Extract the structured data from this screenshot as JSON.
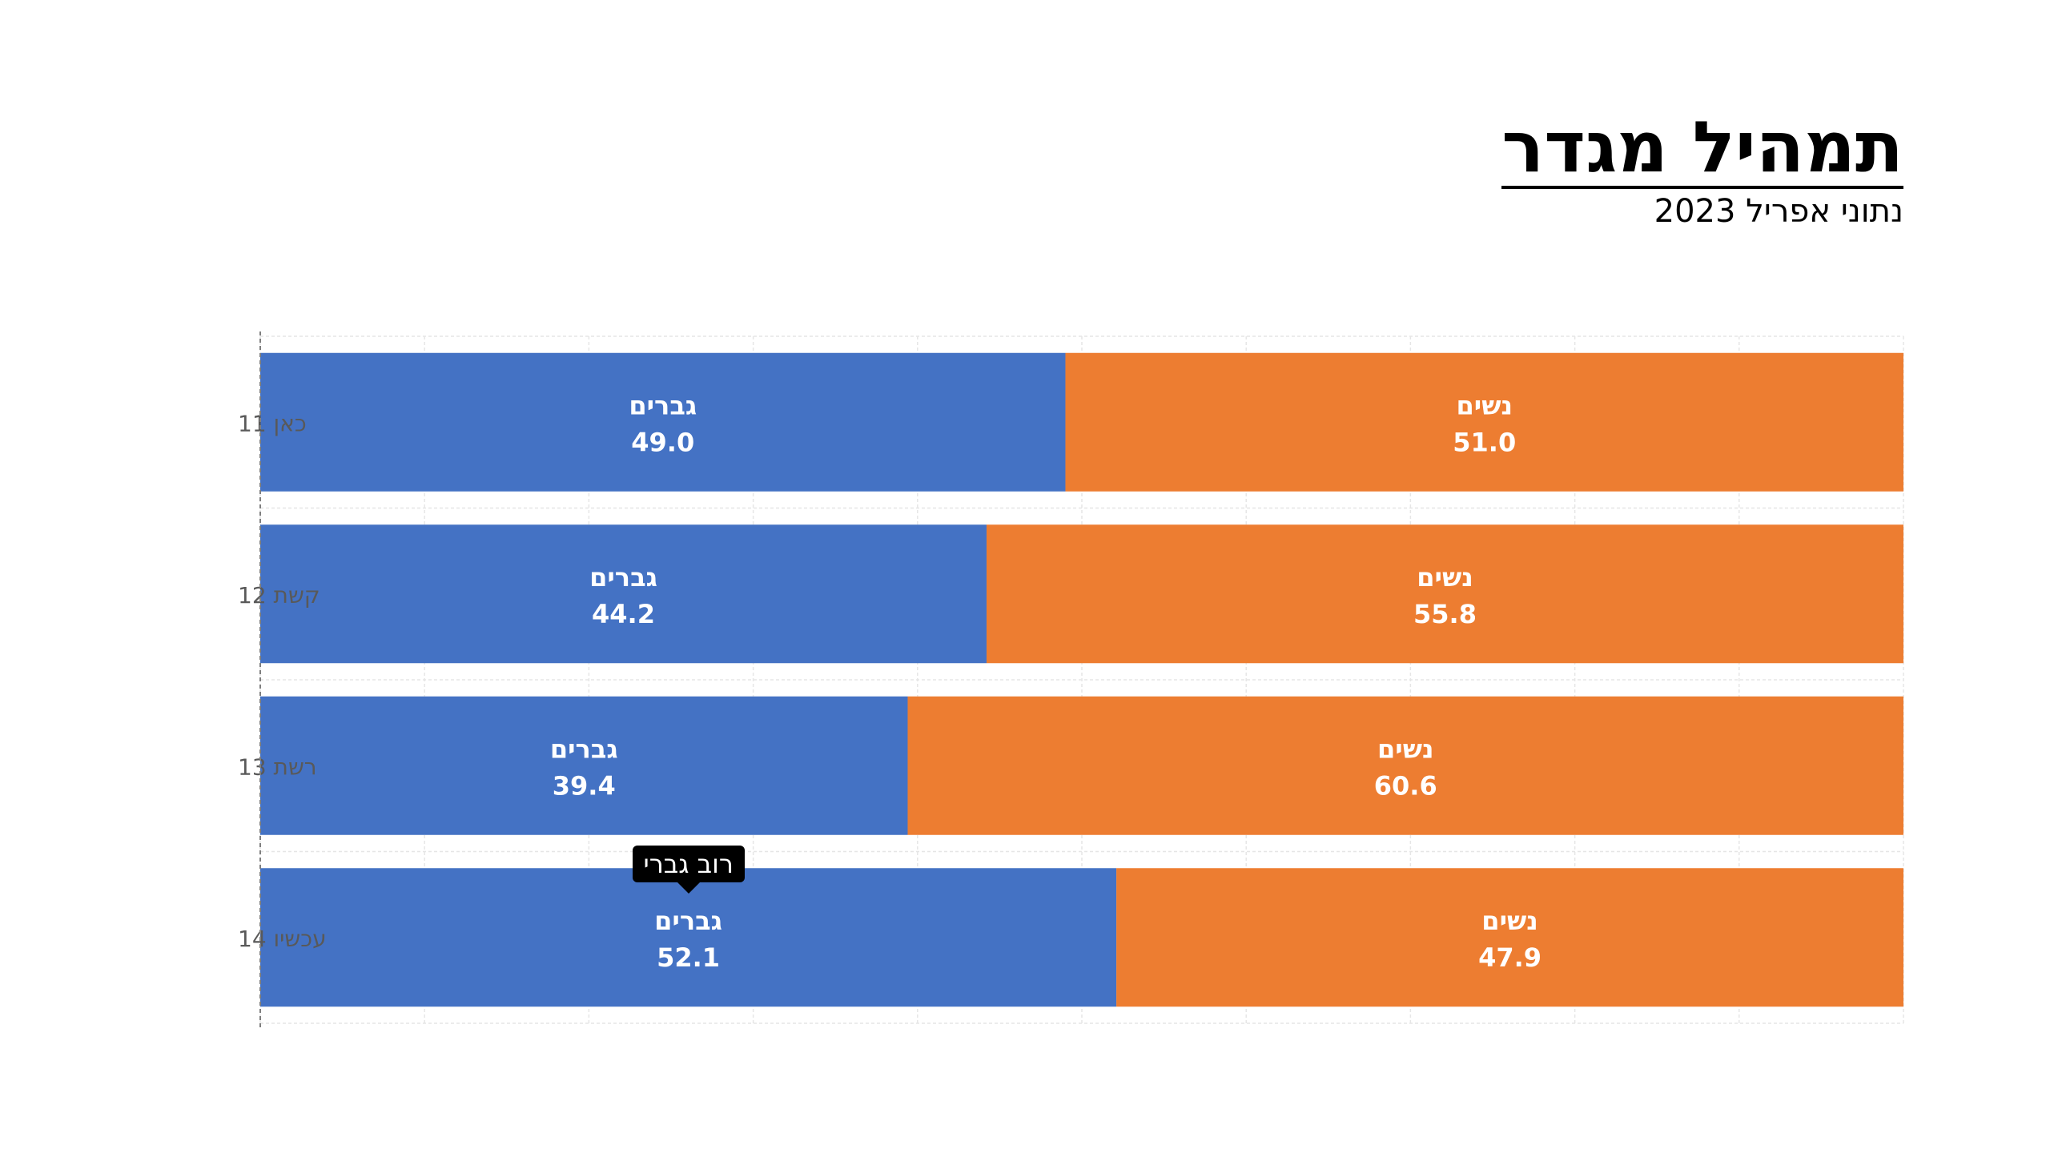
{
  "header": {
    "title": "תמהיל מגדר",
    "subtitle": "נתוני אפריל 2023"
  },
  "chart_data": {
    "type": "bar",
    "orientation": "horizontal",
    "stacked": true,
    "categories": [
      "כאן 11",
      "קשת 12",
      "רשת 13",
      "עכשיו 14"
    ],
    "series": [
      {
        "name": "גברים",
        "values": [
          49.0,
          44.2,
          39.4,
          52.1
        ],
        "color": "#4472C4"
      },
      {
        "name": "נשים",
        "values": [
          51.0,
          55.8,
          60.6,
          47.9
        ],
        "color": "#ED7D31"
      }
    ],
    "xlim": [
      0,
      100
    ],
    "grid": true,
    "legend": "none",
    "annotation": {
      "text": "רוב גברי",
      "category": "עכשיו 14",
      "series": "גברים"
    }
  }
}
